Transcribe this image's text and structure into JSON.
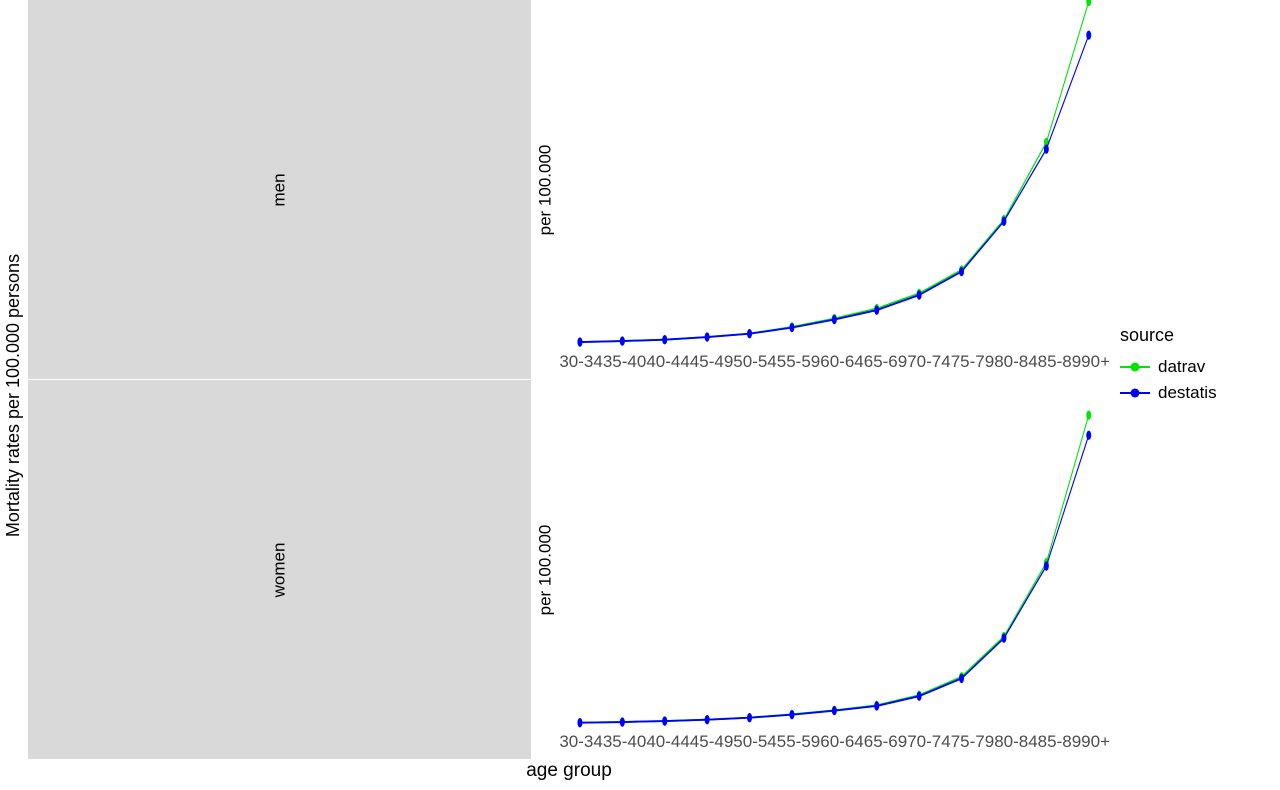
{
  "chart": {
    "type": "line",
    "y_axis_label_outer": "Mortality rates per 100.000 persons",
    "panel_y_label": "per 100.000",
    "x_axis_label": "age group",
    "categories": [
      "30-34",
      "35-40",
      "40-44",
      "45-49",
      "50-54",
      "55-59",
      "60-64",
      "65-69",
      "70-74",
      "75-79",
      "80-84",
      "85-89",
      "90+"
    ],
    "facets": [
      {
        "name": "men",
        "ymax": 100
      },
      {
        "name": "women",
        "ymax": 100
      }
    ],
    "series": {
      "datrav": {
        "color": "#00e600",
        "men": [
          0.5,
          0.8,
          1.2,
          2.0,
          3.0,
          5.0,
          7.5,
          10.5,
          15.0,
          22.0,
          37.0,
          60.0,
          102.0
        ],
        "women": [
          0.3,
          0.5,
          0.8,
          1.2,
          1.8,
          2.8,
          4.0,
          5.5,
          8.5,
          14.0,
          26.0,
          48.0,
          92.0
        ]
      },
      "destatis": {
        "color": "#0000ff",
        "men": [
          0.5,
          0.8,
          1.2,
          2.0,
          3.0,
          4.8,
          7.2,
          10.0,
          14.5,
          21.5,
          36.5,
          58.0,
          92.0
        ],
        "women": [
          0.3,
          0.5,
          0.8,
          1.2,
          1.8,
          2.7,
          3.9,
          5.3,
          8.2,
          13.5,
          25.5,
          47.0,
          86.0
        ]
      }
    },
    "legend": {
      "title": "source",
      "items": [
        "datrav",
        "destatis"
      ]
    },
    "style": {
      "background_color": "#ffffff",
      "facet_strip_bg": "#d9d9d9",
      "tick_label_color": "#4d4d4d",
      "marker_radius": 4.5,
      "line_width": 1.8,
      "axis_fontsize": 17,
      "label_fontsize": 19,
      "legend_fontsize": 17
    }
  }
}
